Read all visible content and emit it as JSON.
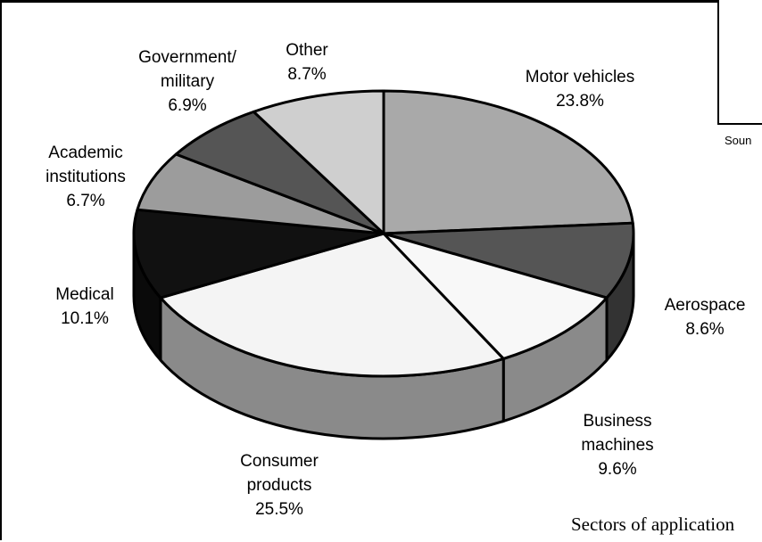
{
  "chart_data": {
    "type": "pie",
    "title": "",
    "caption": "Sectors of application",
    "slices": [
      {
        "name": "Motor vehicles",
        "value": 23.8,
        "label_lines": [
          "Motor vehicles",
          "23.8%"
        ],
        "color": "#a9a9a9"
      },
      {
        "name": "Aerospace",
        "value": 8.6,
        "label_lines": [
          "Aerospace",
          "8.6%"
        ],
        "color": "#555555"
      },
      {
        "name": "Business machines",
        "value": 9.6,
        "label_lines": [
          "Business",
          "machines",
          "9.6%"
        ],
        "color": "#f8f8f8"
      },
      {
        "name": "Consumer products",
        "value": 25.5,
        "label_lines": [
          "Consumer",
          "products",
          "25.5%"
        ],
        "color": "#f4f4f4"
      },
      {
        "name": "Medical",
        "value": 10.1,
        "label_lines": [
          "Medical",
          "10.1%"
        ],
        "color": "#111111"
      },
      {
        "name": "Academic institutions",
        "value": 6.7,
        "label_lines": [
          "Academic",
          "institutions",
          "6.7%"
        ],
        "color": "#9c9c9c"
      },
      {
        "name": "Government/military",
        "value": 6.9,
        "label_lines": [
          "Government/",
          "military",
          "6.9%"
        ],
        "color": "#555555"
      },
      {
        "name": "Other",
        "value": 8.7,
        "label_lines": [
          "Other",
          "8.7%"
        ],
        "color": "#cfcfcf"
      }
    ]
  },
  "inset_fragment": "Soun"
}
